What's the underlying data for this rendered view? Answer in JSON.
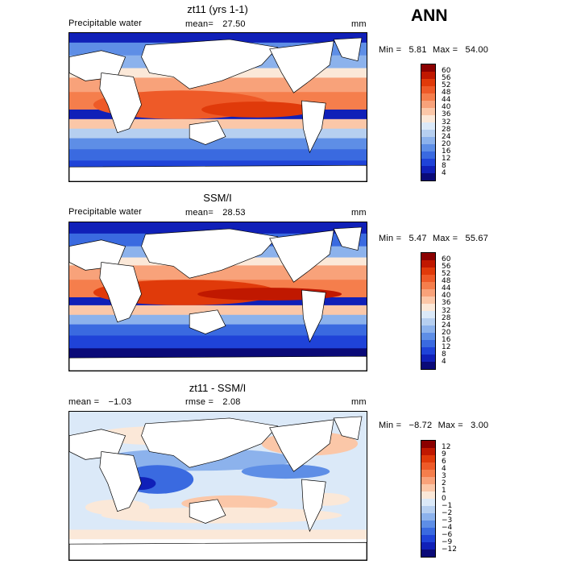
{
  "season": "ANN",
  "panels": [
    {
      "title": "zt11 (yrs 1-1)",
      "left_label": "Precipitable water",
      "stat_label": "mean=",
      "stat_value": "27.50",
      "stat2_label": "",
      "stat2_value": "",
      "units": "mm",
      "min_label": "Min =",
      "min_value": "5.81",
      "max_label": "Max =",
      "max_value": "54.00",
      "colorbar_levels": [
        "60",
        "56",
        "52",
        "48",
        "44",
        "40",
        "36",
        "32",
        "28",
        "24",
        "20",
        "16",
        "12",
        "8",
        "4"
      ],
      "colors": [
        "#8b0000",
        "#c01800",
        "#e03a0a",
        "#ee5a28",
        "#f57e4c",
        "#f8a27a",
        "#fbc7a8",
        "#fbe8d8",
        "#dbe9f8",
        "#b6cff0",
        "#8cb2ec",
        "#5e8ee6",
        "#3a6ae0",
        "#1f43d8",
        "#1020b8",
        "#0a0a78"
      ]
    },
    {
      "title": "SSM/I",
      "left_label": "Precipitable water",
      "stat_label": "mean=",
      "stat_value": "28.53",
      "stat2_label": "",
      "stat2_value": "",
      "units": "mm",
      "min_label": "Min =",
      "min_value": "5.47",
      "max_label": "Max =",
      "max_value": "55.67",
      "colorbar_levels": [
        "60",
        "56",
        "52",
        "48",
        "44",
        "40",
        "36",
        "32",
        "28",
        "24",
        "20",
        "16",
        "12",
        "8",
        "4"
      ],
      "colors": [
        "#8b0000",
        "#c01800",
        "#e03a0a",
        "#ee5a28",
        "#f57e4c",
        "#f8a27a",
        "#fbc7a8",
        "#fbe8d8",
        "#dbe9f8",
        "#b6cff0",
        "#8cb2ec",
        "#5e8ee6",
        "#3a6ae0",
        "#1f43d8",
        "#1020b8",
        "#0a0a78"
      ]
    },
    {
      "title": "zt11 - SSM/I",
      "left_label": "",
      "stat_label": "mean =",
      "stat_value": "−1.03",
      "stat2_label": "rmse =",
      "stat2_value": "2.08",
      "units": "mm",
      "min_label": "Min =",
      "min_value": "−8.72",
      "max_label": "Max =",
      "max_value": "3.00",
      "colorbar_levels": [
        "12",
        "9",
        "6",
        "4",
        "3",
        "2",
        "1",
        "0",
        "−1",
        "−2",
        "−3",
        "−4",
        "−6",
        "−9",
        "−12"
      ],
      "colors": [
        "#8b0000",
        "#c01800",
        "#e03a0a",
        "#ee5a28",
        "#f57e4c",
        "#f8a27a",
        "#fbc7a8",
        "#fbe8d8",
        "#dbe9f8",
        "#b6cff0",
        "#8cb2ec",
        "#5e8ee6",
        "#3a6ae0",
        "#1f43d8",
        "#1020b8",
        "#0a0a78"
      ]
    }
  ]
}
